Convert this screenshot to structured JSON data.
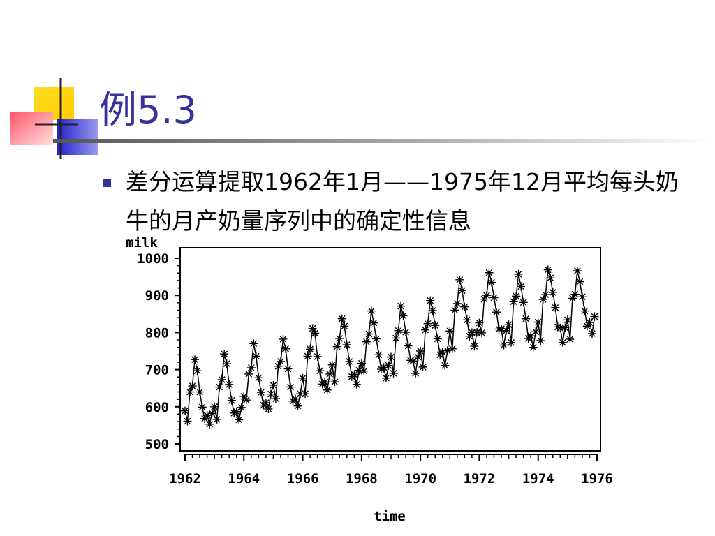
{
  "slide": {
    "title": "例5.3",
    "bullet_text": "差分运算提取1962年1月——1975年12月平均每头奶牛的月产奶量序列中的确定性信息",
    "accent_color": "#333399"
  },
  "chart_data": {
    "type": "scatter",
    "style": "line with star markers",
    "ylabel": "milk",
    "xlabel": "time",
    "xlim": [
      1962,
      1976
    ],
    "ylim": [
      500,
      1000
    ],
    "x_ticks": [
      "1962",
      "1964",
      "1966",
      "1968",
      "1970",
      "1972",
      "1974",
      "1976"
    ],
    "y_ticks": [
      "1000",
      "900",
      "800",
      "700",
      "600",
      "500"
    ],
    "grid": false,
    "legend": "none",
    "series": [
      {
        "start": "1962-01",
        "frequency": "monthly",
        "values": [
          589,
          561,
          640,
          656,
          727,
          697,
          640,
          599,
          568,
          577,
          553,
          582,
          600,
          566,
          653,
          673,
          742,
          716,
          660,
          617,
          583,
          587,
          565,
          598,
          628,
          618,
          688,
          705,
          770,
          736,
          678,
          639,
          604,
          611,
          594,
          634,
          658,
          622,
          709,
          722,
          782,
          756,
          702,
          653,
          615,
          621,
          602,
          635,
          677,
          635,
          736,
          755,
          811,
          798,
          735,
          697,
          661,
          667,
          645,
          688,
          713,
          667,
          762,
          784,
          837,
          817,
          767,
          722,
          681,
          687,
          660,
          698,
          717,
          696,
          775,
          796,
          858,
          826,
          783,
          740,
          701,
          706,
          677,
          711,
          734,
          690,
          785,
          805,
          871,
          845,
          801,
          764,
          725,
          723,
          690,
          734,
          750,
          707,
          807,
          824,
          886,
          859,
          819,
          783,
          740,
          747,
          711,
          751,
          804,
          756,
          860,
          878,
          942,
          913,
          869,
          834,
          790,
          800,
          763,
          800,
          826,
          799,
          890,
          900,
          961,
          935,
          894,
          855,
          809,
          810,
          766,
          805,
          821,
          773,
          883,
          898,
          957,
          924,
          881,
          837,
          784,
          791,
          760,
          802,
          828,
          778,
          889,
          902,
          969,
          947,
          908,
          867,
          815,
          812,
          773,
          813,
          834,
          782,
          892,
          903,
          966,
          937,
          896,
          858,
          817,
          827,
          797,
          843
        ]
      }
    ]
  }
}
